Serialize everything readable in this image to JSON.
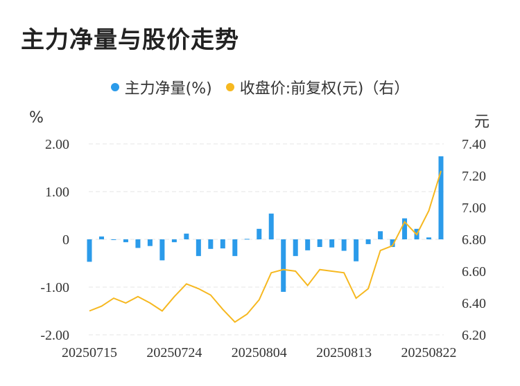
{
  "chart_data": {
    "type": "bar",
    "title": "主力净量与股价走势",
    "legend": [
      {
        "name": "主力净量(%)",
        "color": "#2B9BEA"
      },
      {
        "name": "收盘价:前复权(元)（右）",
        "color": "#F6B820"
      }
    ],
    "left_unit": "%",
    "right_unit": "元",
    "left_ticks": [
      "2.00",
      "1.00",
      "0",
      "-1.00",
      "-2.00"
    ],
    "right_ticks": [
      "7.40",
      "7.20",
      "7.00",
      "6.80",
      "6.60",
      "6.40",
      "6.20"
    ],
    "ylim_left": [
      -2.0,
      2.0
    ],
    "ylim_right": [
      6.2,
      7.4
    ],
    "x_tick_labels": [
      "20250715",
      "20250724",
      "20250804",
      "20250813",
      "20250822"
    ],
    "x_tick_index": [
      0,
      7,
      14,
      21,
      28
    ],
    "series": [
      {
        "name": "主力净量(%)",
        "type": "bar",
        "axis": "left",
        "values": [
          -0.47,
          0.06,
          0.0,
          -0.06,
          -0.18,
          -0.14,
          -0.44,
          -0.06,
          0.12,
          -0.35,
          -0.2,
          -0.19,
          -0.35,
          0.01,
          0.22,
          0.54,
          -1.1,
          -0.35,
          -0.23,
          -0.16,
          -0.17,
          -0.24,
          -0.46,
          -0.1,
          0.17,
          -0.16,
          0.44,
          0.22,
          0.04,
          1.74
        ]
      },
      {
        "name": "收盘价:前复权(元)（右）",
        "type": "line",
        "axis": "right",
        "values": [
          6.35,
          6.38,
          6.43,
          6.4,
          6.44,
          6.4,
          6.35,
          6.44,
          6.52,
          6.49,
          6.45,
          6.36,
          6.28,
          6.33,
          6.42,
          6.59,
          6.61,
          6.6,
          6.51,
          6.61,
          6.6,
          6.59,
          6.43,
          6.49,
          6.73,
          6.76,
          6.91,
          6.83,
          6.98,
          7.23
        ]
      }
    ],
    "colors": {
      "bar": "#2B9BEA",
      "line": "#F6B820",
      "grid": "#E6E6E6",
      "text": "#333333"
    }
  }
}
